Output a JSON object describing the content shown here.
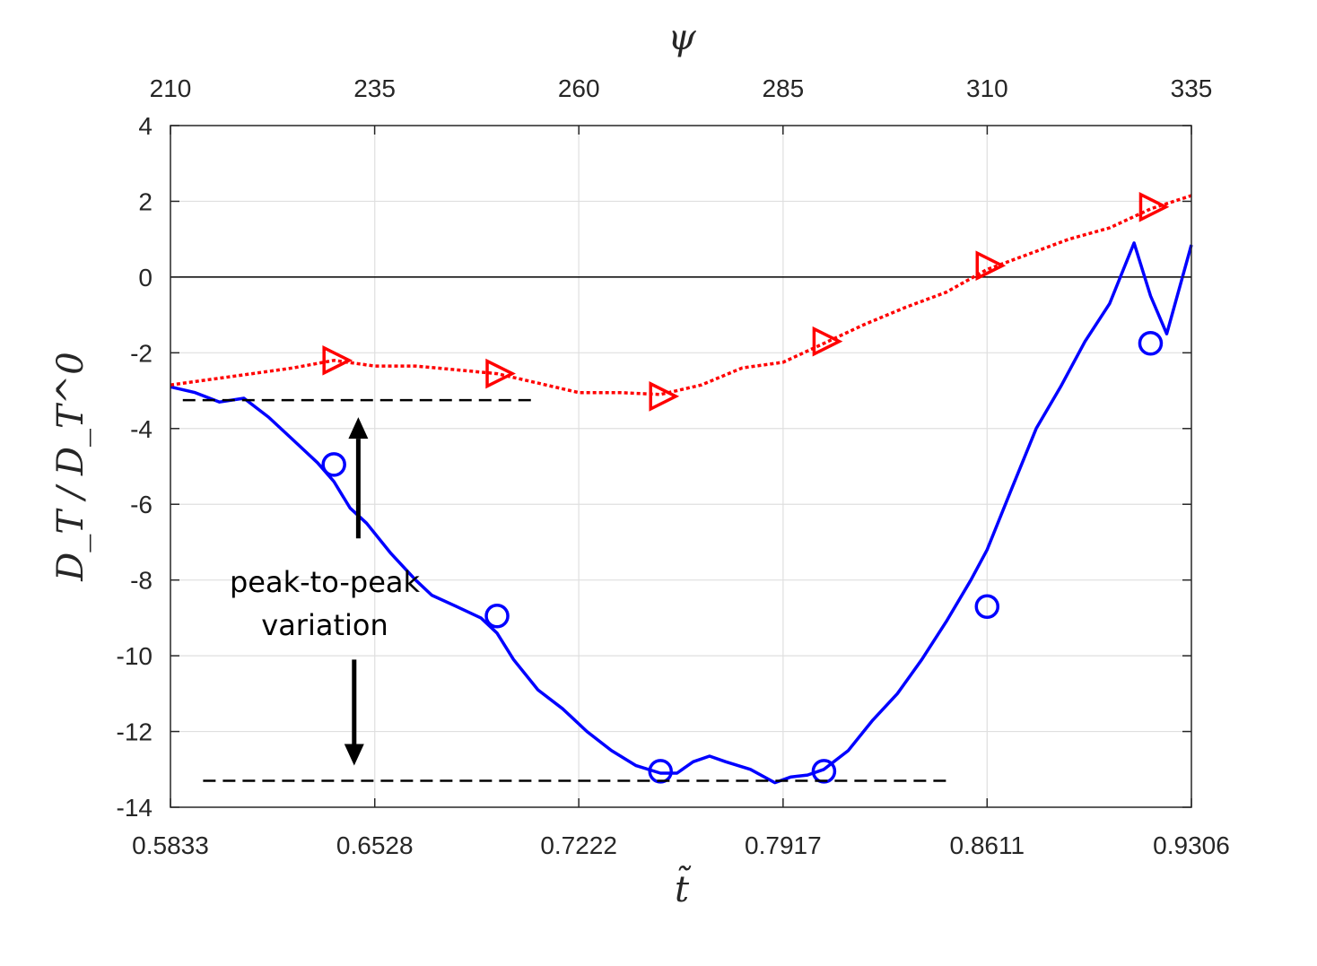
{
  "chart_data": {
    "type": "line",
    "title": "",
    "xlabel": "t̃",
    "ylabel": "D_T / D_T^0",
    "top_xlabel": "ψ",
    "xlim": [
      0.5833,
      0.9306
    ],
    "ylim": [
      -14,
      4
    ],
    "grid": true,
    "x_ticks": [
      0.5833,
      0.6528,
      0.7222,
      0.7917,
      0.8611,
      0.9306
    ],
    "x_tick_labels": [
      "0.5833",
      "0.6528",
      "0.7222",
      "0.7917",
      "0.8611",
      "0.9306"
    ],
    "y_ticks": [
      4,
      2,
      0,
      -2,
      -4,
      -6,
      -8,
      -10,
      -12,
      -14
    ],
    "y_tick_labels": [
      "4",
      "2",
      "0",
      "-2",
      "-4",
      "-6",
      "-8",
      "-10",
      "-12",
      "-14"
    ],
    "top_ticks": [
      210,
      235,
      260,
      285,
      310,
      335
    ],
    "top_tick_labels": [
      "210",
      "235",
      "260",
      "285",
      "310",
      "335"
    ],
    "zero_line": 0,
    "series": [
      {
        "style": "solid",
        "color": "#0000ff",
        "marker": "circle",
        "x": [
          0.5833,
          0.5917,
          0.6,
          0.6083,
          0.6167,
          0.625,
          0.6333,
          0.6389,
          0.6444,
          0.65,
          0.6583,
          0.6667,
          0.6722,
          0.6806,
          0.6889,
          0.6944,
          0.7,
          0.7083,
          0.7167,
          0.725,
          0.7333,
          0.7417,
          0.75,
          0.7556,
          0.7611,
          0.7667,
          0.7722,
          0.7806,
          0.7889,
          0.7944,
          0.8,
          0.8056,
          0.8139,
          0.8222,
          0.8306,
          0.8389,
          0.8472,
          0.8556,
          0.8611,
          0.8694,
          0.8778,
          0.8861,
          0.8944,
          0.9028,
          0.9111,
          0.9167,
          0.9222,
          0.9306
        ],
        "y": [
          -2.9,
          -3.05,
          -3.3,
          -3.2,
          -3.7,
          -4.3,
          -4.9,
          -5.4,
          -6.1,
          -6.5,
          -7.3,
          -8.0,
          -8.4,
          -8.7,
          -9.0,
          -9.4,
          -10.1,
          -10.9,
          -11.4,
          -12.0,
          -12.5,
          -12.9,
          -13.1,
          -13.1,
          -12.8,
          -12.65,
          -12.8,
          -13.0,
          -13.35,
          -13.2,
          -13.15,
          -13.0,
          -12.5,
          -11.7,
          -11.0,
          -10.1,
          -9.1,
          -8.0,
          -7.2,
          -5.6,
          -4.0,
          -2.9,
          -1.7,
          -0.7,
          0.9,
          -0.5,
          -1.5,
          0.85
        ],
        "markers_x": [
          0.6389,
          0.6944,
          0.75,
          0.8056,
          0.8611,
          0.9167
        ],
        "markers_y": [
          -4.95,
          -8.95,
          -13.05,
          -13.05,
          -8.7,
          -1.75
        ]
      },
      {
        "style": "dotted",
        "color": "#ff0000",
        "marker": "triangle-right",
        "x": [
          0.5833,
          0.5972,
          0.6111,
          0.625,
          0.6389,
          0.6528,
          0.6667,
          0.6806,
          0.6944,
          0.7083,
          0.7222,
          0.7361,
          0.75,
          0.7639,
          0.7778,
          0.7917,
          0.8056,
          0.8194,
          0.8333,
          0.8472,
          0.8611,
          0.875,
          0.8889,
          0.9028,
          0.9167,
          0.9306
        ],
        "y": [
          -2.85,
          -2.7,
          -2.55,
          -2.4,
          -2.2,
          -2.35,
          -2.35,
          -2.45,
          -2.55,
          -2.8,
          -3.05,
          -3.05,
          -3.1,
          -2.85,
          -2.4,
          -2.25,
          -1.75,
          -1.25,
          -0.8,
          -0.4,
          0.2,
          0.6,
          1.0,
          1.3,
          1.8,
          2.15
        ],
        "markers_x": [
          0.6389,
          0.6944,
          0.75,
          0.8056,
          0.8611,
          0.9167
        ],
        "markers_y": [
          -2.2,
          -2.55,
          -3.15,
          -1.7,
          0.3,
          1.85
        ]
      }
    ],
    "annotations": {
      "text_line1": "peak-to-peak",
      "text_line2": "variation",
      "upper_dashed": {
        "x0": 0.5875,
        "x1": 0.7069,
        "y": -3.25
      },
      "lower_dashed": {
        "x0": 0.5944,
        "x1": 0.8472,
        "y": -13.3
      },
      "up_arrow": {
        "x": 0.6472,
        "y_from": -6.9,
        "y_to": -3.7
      },
      "down_arrow": {
        "x": 0.6458,
        "y_from": -10.1,
        "y_to": -12.9
      }
    }
  }
}
